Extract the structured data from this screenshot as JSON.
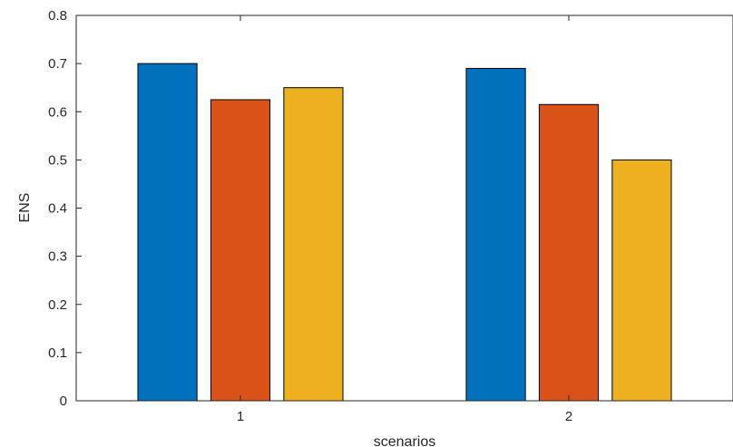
{
  "chart_data": {
    "type": "bar",
    "categories": [
      "1",
      "2"
    ],
    "series": [
      {
        "values": [
          0.7,
          0.69
        ],
        "color": "#0072BD"
      },
      {
        "values": [
          0.625,
          0.615
        ],
        "color": "#D95319"
      },
      {
        "values": [
          0.65,
          0.5
        ],
        "color": "#EDB120"
      }
    ],
    "xlabel": "scenarios",
    "ylabel": "ENS",
    "ylim": [
      0,
      0.8
    ],
    "yticks": [
      "0",
      "0.1",
      "0.2",
      "0.3",
      "0.4",
      "0.5",
      "0.6",
      "0.7",
      "0.8"
    ],
    "grid": false,
    "legend": "none"
  }
}
